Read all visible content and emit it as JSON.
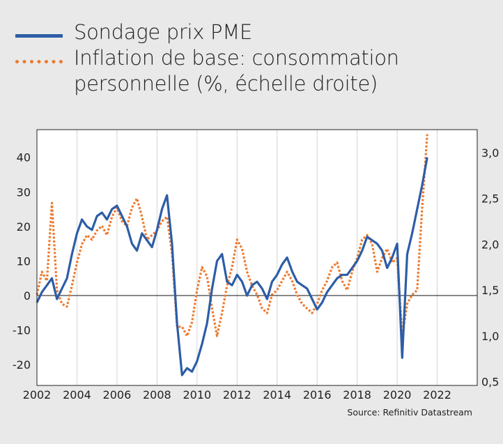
{
  "legend": {
    "series1": "Sondage prix PME",
    "series2_line1": "Inflation de base: consommation",
    "series2_line2": "personnelle (%, échelle droite)"
  },
  "source": "Source: Refinitiv Datastream",
  "colors": {
    "series1": "#2d5da6",
    "series2": "#ee7a2e",
    "background": "#e9e9e9",
    "plot": "#ffffff"
  },
  "chart_data": {
    "type": "line",
    "x_ticks": [
      "2002",
      "2004",
      "2006",
      "2008",
      "2010",
      "2012",
      "2014",
      "2016",
      "2018",
      "2020",
      "2022"
    ],
    "y_left_ticks": [
      "-20",
      "-10",
      "0",
      "10",
      "20",
      "30",
      "40"
    ],
    "y_right_ticks": [
      "0,5",
      "1,0",
      "1,5",
      "2,0",
      "2,5",
      "3,0"
    ],
    "xlim": [
      2002,
      2024
    ],
    "ylim_left": [
      -26,
      48
    ],
    "ylim_right": [
      0.46,
      3.25
    ],
    "grid": "vertical",
    "series": [
      {
        "name": "Sondage prix PME",
        "axis": "left",
        "x": [
          2002.0,
          2002.25,
          2002.5,
          2002.75,
          2003.0,
          2003.25,
          2003.5,
          2003.75,
          2004.0,
          2004.25,
          2004.5,
          2004.75,
          2005.0,
          2005.25,
          2005.5,
          2005.75,
          2006.0,
          2006.25,
          2006.5,
          2006.75,
          2007.0,
          2007.25,
          2007.5,
          2007.75,
          2008.0,
          2008.25,
          2008.5,
          2008.75,
          2009.0,
          2009.25,
          2009.5,
          2009.75,
          2010.0,
          2010.25,
          2010.5,
          2010.75,
          2011.0,
          2011.25,
          2011.5,
          2011.75,
          2012.0,
          2012.25,
          2012.5,
          2012.75,
          2013.0,
          2013.25,
          2013.5,
          2013.75,
          2014.0,
          2014.25,
          2014.5,
          2014.75,
          2015.0,
          2015.25,
          2015.5,
          2015.75,
          2016.0,
          2016.25,
          2016.5,
          2016.75,
          2017.0,
          2017.25,
          2017.5,
          2017.75,
          2018.0,
          2018.25,
          2018.5,
          2018.75,
          2019.0,
          2019.25,
          2019.5,
          2019.75,
          2020.0,
          2020.25,
          2020.5,
          2020.75,
          2021.0,
          2021.25,
          2021.5
        ],
        "values": [
          -2,
          1,
          3,
          5,
          -1,
          2,
          5,
          12,
          18,
          22,
          20,
          19,
          23,
          24,
          22,
          25,
          26,
          23,
          20,
          15,
          13,
          18,
          16,
          14,
          19,
          25,
          29,
          15,
          -8,
          -23,
          -21,
          -22,
          -19,
          -14,
          -8,
          2,
          10,
          12,
          4,
          3,
          6,
          4,
          0,
          3,
          4,
          2,
          -1,
          4,
          6,
          9,
          11,
          7,
          4,
          3,
          2,
          -1,
          -4,
          -2,
          1,
          3,
          5,
          6,
          6,
          8,
          10,
          13,
          17,
          16,
          15,
          13,
          8,
          11,
          15,
          -18,
          12,
          18,
          25,
          32,
          40
        ]
      },
      {
        "name": "Inflation de base: consommation personnelle (%, échelle droite)",
        "axis": "right",
        "x": [
          2002.0,
          2002.25,
          2002.5,
          2002.75,
          2003.0,
          2003.25,
          2003.5,
          2003.75,
          2004.0,
          2004.25,
          2004.5,
          2004.75,
          2005.0,
          2005.25,
          2005.5,
          2005.75,
          2006.0,
          2006.25,
          2006.5,
          2006.75,
          2007.0,
          2007.25,
          2007.5,
          2007.75,
          2008.0,
          2008.25,
          2008.5,
          2008.75,
          2009.0,
          2009.25,
          2009.5,
          2009.75,
          2010.0,
          2010.25,
          2010.5,
          2010.75,
          2011.0,
          2011.25,
          2011.5,
          2011.75,
          2012.0,
          2012.25,
          2012.5,
          2012.75,
          2013.0,
          2013.25,
          2013.5,
          2013.75,
          2014.0,
          2014.25,
          2014.5,
          2014.75,
          2015.0,
          2015.25,
          2015.5,
          2015.75,
          2016.0,
          2016.25,
          2016.5,
          2016.75,
          2017.0,
          2017.25,
          2017.5,
          2017.75,
          2018.0,
          2018.25,
          2018.5,
          2018.75,
          2019.0,
          2019.25,
          2019.5,
          2019.75,
          2020.0,
          2020.25,
          2020.5,
          2020.75,
          2021.0,
          2021.25,
          2021.5
        ],
        "values": [
          1.45,
          1.7,
          1.6,
          2.45,
          1.5,
          1.35,
          1.32,
          1.55,
          1.8,
          2.0,
          2.1,
          2.05,
          2.15,
          2.2,
          2.1,
          2.3,
          2.4,
          2.25,
          2.2,
          2.4,
          2.5,
          2.3,
          2.05,
          2.1,
          2.15,
          2.25,
          2.3,
          1.9,
          1.1,
          1.1,
          1.0,
          1.15,
          1.5,
          1.75,
          1.65,
          1.3,
          1.0,
          1.25,
          1.55,
          1.75,
          2.05,
          1.95,
          1.7,
          1.55,
          1.45,
          1.3,
          1.25,
          1.45,
          1.5,
          1.6,
          1.7,
          1.6,
          1.45,
          1.35,
          1.3,
          1.25,
          1.35,
          1.5,
          1.6,
          1.75,
          1.8,
          1.6,
          1.5,
          1.7,
          1.85,
          2.05,
          2.1,
          2.0,
          1.7,
          1.85,
          1.95,
          1.8,
          1.85,
          1.0,
          1.35,
          1.45,
          1.5,
          2.4,
          3.2
        ]
      }
    ]
  }
}
